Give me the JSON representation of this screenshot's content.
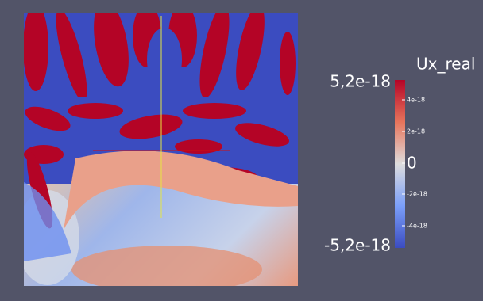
{
  "colorbar": {
    "title": "Ux_real",
    "max_label": "5,2e-18",
    "min_label": "-5,2e-18",
    "ticks": [
      "4e-18",
      "2e-18",
      "0",
      "-2e-18",
      "-4e-18"
    ]
  }
}
